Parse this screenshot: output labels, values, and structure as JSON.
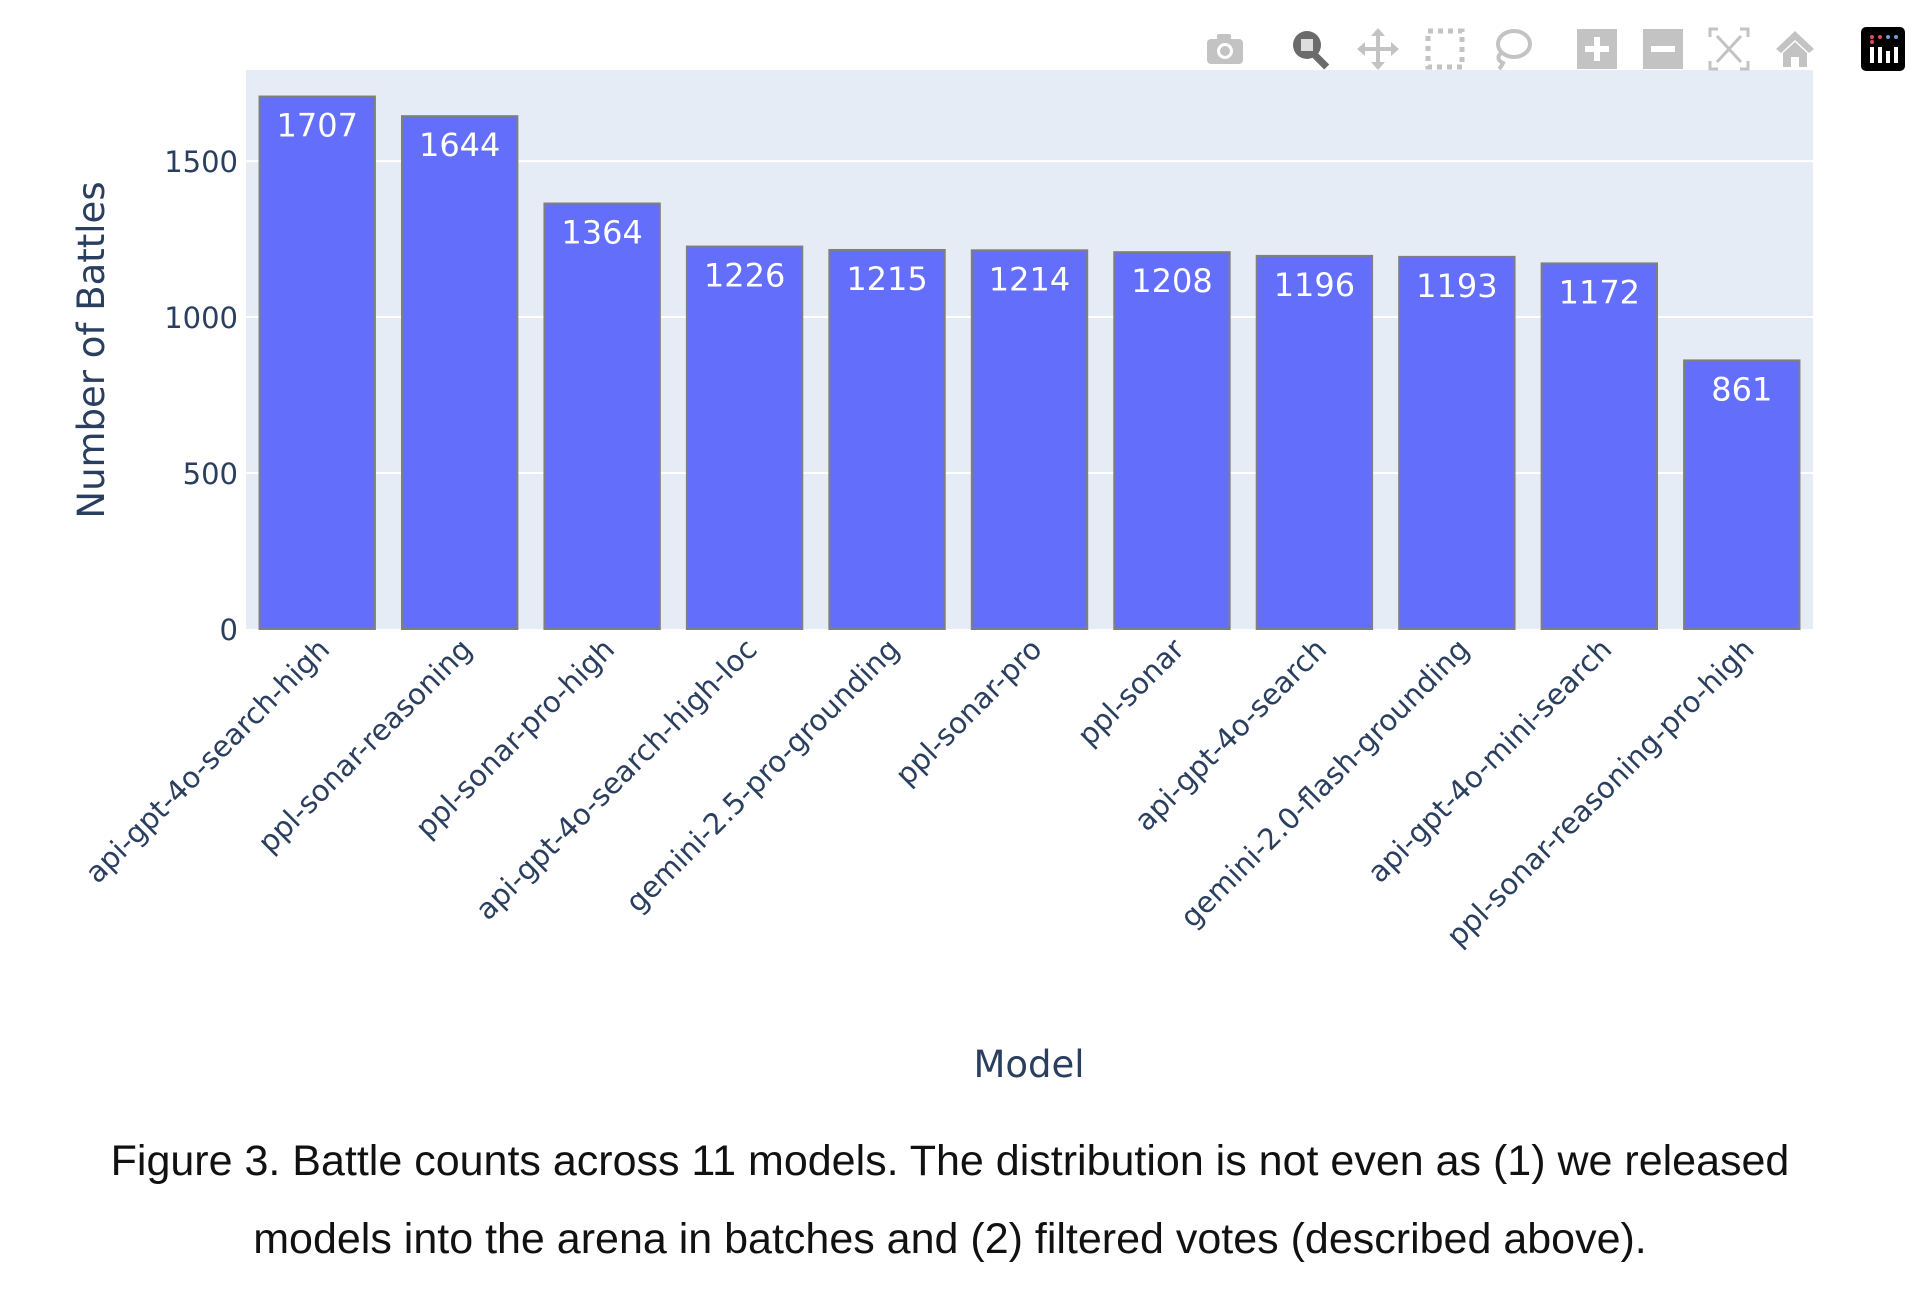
{
  "chart_data": {
    "type": "bar",
    "categories": [
      "api-gpt-4o-search-high",
      "ppl-sonar-reasoning",
      "ppl-sonar-pro-high",
      "api-gpt-4o-search-high-loc",
      "gemini-2.5-pro-grounding",
      "ppl-sonar-pro",
      "ppl-sonar",
      "api-gpt-4o-search",
      "gemini-2.0-flash-grounding",
      "api-gpt-4o-mini-search",
      "ppl-sonar-reasoning-pro-high"
    ],
    "values": [
      1707,
      1644,
      1364,
      1226,
      1215,
      1214,
      1208,
      1196,
      1193,
      1172,
      861
    ],
    "data_labels": [
      "1707",
      "1644",
      "1364",
      "1226",
      "1215",
      "1214",
      "1208",
      "1196",
      "1193",
      "1172",
      "861"
    ],
    "xlabel": "Model",
    "ylabel": "Number of Battles",
    "ylim": [
      0,
      1792
    ],
    "yticks": [
      0,
      500,
      1000,
      1500
    ],
    "ytick_labels": [
      "0",
      "500",
      "1000",
      "1500"
    ],
    "grid": true,
    "colors": {
      "bar": "#636efa",
      "bar_outline": "#7f7f7f",
      "plot_bg": "#e5ecf6",
      "text": "#2a3f5f"
    }
  },
  "toolbar": {
    "icons": [
      "camera-icon",
      "zoom-icon",
      "pan-icon",
      "box-select-icon",
      "lasso-select-icon",
      "zoom-in-icon",
      "zoom-out-icon",
      "autoscale-icon",
      "reset-axes-home-icon",
      "plotly-logo-icon"
    ],
    "active": "zoom-icon"
  },
  "caption": {
    "line1": "Figure 3. Battle counts across 11 models. The distribution is not even as (1) we released",
    "line2": "models into the arena in batches and (2) filtered votes (described above)."
  }
}
